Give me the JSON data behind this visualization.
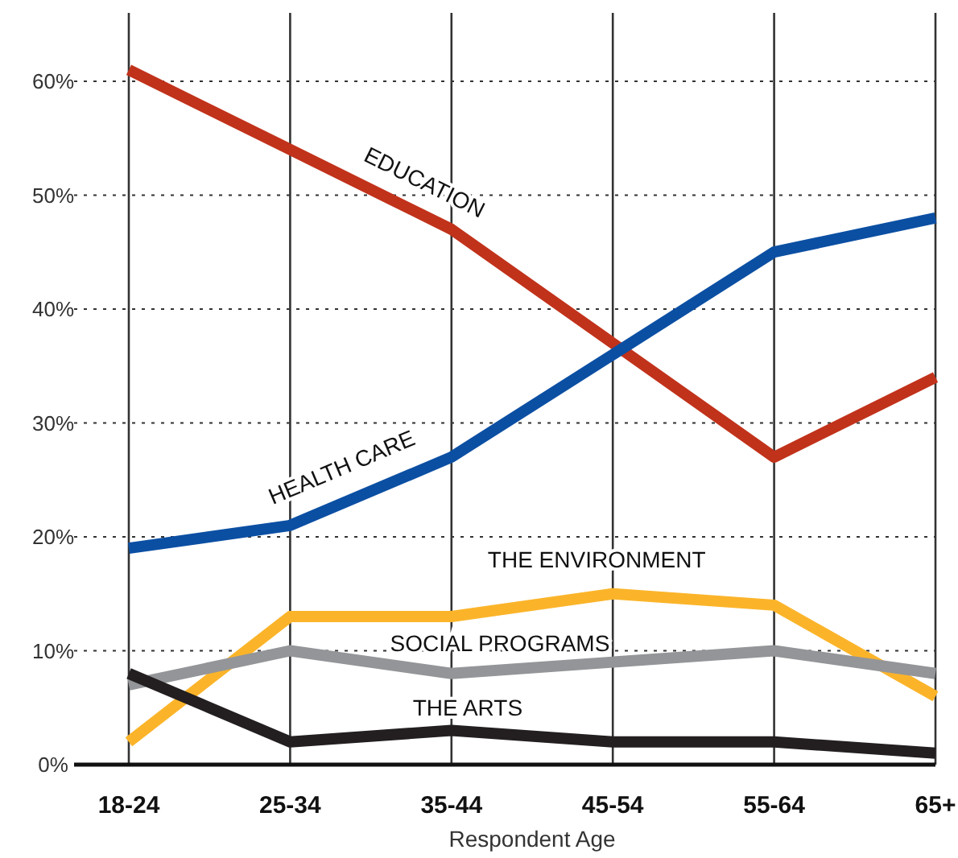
{
  "chart_data": {
    "type": "line",
    "xlabel": "Respondent Age",
    "categories": [
      "18-24",
      "25-34",
      "35-44",
      "45-54",
      "55-64",
      "65+"
    ],
    "series": [
      {
        "name": "EDUCATION",
        "color": "#c1321b",
        "values": [
          61,
          54,
          47,
          37,
          27,
          34
        ]
      },
      {
        "name": "HEALTH CARE",
        "color": "#0b4fa3",
        "values": [
          19,
          21,
          27,
          36,
          45,
          48
        ]
      },
      {
        "name": "THE ENVIRONMENT",
        "color": "#fbb42a",
        "values": [
          2,
          13,
          13,
          15,
          14,
          6
        ]
      },
      {
        "name": "SOCIAL PROGRAMS",
        "color": "#939598",
        "values": [
          7,
          10,
          8,
          9,
          10,
          8
        ]
      },
      {
        "name": "THE ARTS",
        "color": "#231f20",
        "values": [
          8,
          2,
          3,
          2,
          2,
          1
        ]
      }
    ],
    "ylim": [
      0,
      66
    ],
    "yticks": [
      {
        "value": 0,
        "label": "0%"
      },
      {
        "value": 10,
        "label": "10%"
      },
      {
        "value": 20,
        "label": "20%"
      },
      {
        "value": 30,
        "label": "30%"
      },
      {
        "value": 40,
        "label": "40%"
      },
      {
        "value": 50,
        "label": "50%"
      },
      {
        "value": 60,
        "label": "60%"
      }
    ],
    "grid": true,
    "marker": "none",
    "line_style": "solid"
  }
}
